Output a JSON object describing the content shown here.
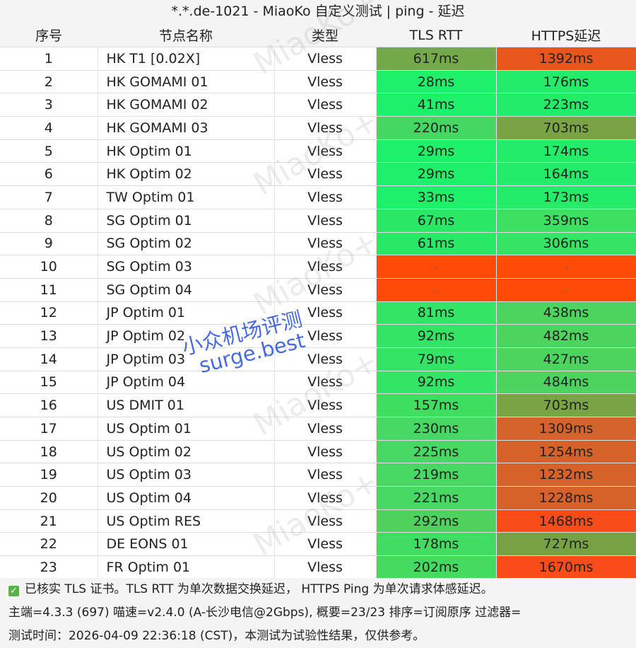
{
  "title": "*.*.de-1021 - MiaoKo 自定义测试 | ping - 延迟",
  "header": [
    "序号",
    "节点名称",
    "类型",
    "TLS RTT",
    "HTTPS延迟"
  ],
  "rows": [
    [
      "1",
      "HK T1 [0.02X]",
      "Vless",
      "617ms",
      "1392ms"
    ],
    [
      "2",
      "HK GOMAMI 01",
      "Vless",
      "28ms",
      "176ms"
    ],
    [
      "3",
      "HK GOMAMI 02",
      "Vless",
      "41ms",
      "223ms"
    ],
    [
      "4",
      "HK GOMAMI 03",
      "Vless",
      "220ms",
      "703ms"
    ],
    [
      "5",
      "HK Optim 01",
      "Vless",
      "29ms",
      "174ms"
    ],
    [
      "6",
      "HK Optim 02",
      "Vless",
      "29ms",
      "164ms"
    ],
    [
      "7",
      "TW Optim 01",
      "Vless",
      "33ms",
      "173ms"
    ],
    [
      "8",
      "SG Optim 01",
      "Vless",
      "67ms",
      "359ms"
    ],
    [
      "9",
      "SG Optim 02",
      "Vless",
      "61ms",
      "306ms"
    ],
    [
      "10",
      "SG Optim 03",
      "Vless",
      "-",
      "-"
    ],
    [
      "11",
      "SG Optim 04",
      "Vless",
      "-",
      "-"
    ],
    [
      "12",
      "JP Optim 01",
      "Vless",
      "81ms",
      "438ms"
    ],
    [
      "13",
      "JP Optim 02",
      "Vless",
      "92ms",
      "482ms"
    ],
    [
      "14",
      "JP Optim 03",
      "Vless",
      "79ms",
      "427ms"
    ],
    [
      "15",
      "JP Optim 04",
      "Vless",
      "92ms",
      "484ms"
    ],
    [
      "16",
      "US DMIT 01",
      "Vless",
      "157ms",
      "703ms"
    ],
    [
      "17",
      "US Optim 01",
      "Vless",
      "230ms",
      "1309ms"
    ],
    [
      "18",
      "US Optim 02",
      "Vless",
      "225ms",
      "1254ms"
    ],
    [
      "19",
      "US Optim 03",
      "Vless",
      "219ms",
      "1232ms"
    ],
    [
      "20",
      "US Optim 04",
      "Vless",
      "221ms",
      "1228ms"
    ],
    [
      "21",
      "US Optim RES",
      "Vless",
      "292ms",
      "1468ms"
    ],
    [
      "22",
      "DE EONS 01",
      "Vless",
      "178ms",
      "727ms"
    ],
    [
      "23",
      "FR Optim 01",
      "Vless",
      "202ms",
      "1670ms"
    ]
  ],
  "cell_colors": [
    [
      "#74a94a",
      "#e8561e"
    ],
    [
      "#1ef06a",
      "#22ec68"
    ],
    [
      "#1ef06a",
      "#22ec68"
    ],
    [
      "#44d862",
      "#78a444"
    ],
    [
      "#1ef06a",
      "#22ec68"
    ],
    [
      "#1ef06a",
      "#22ec68"
    ],
    [
      "#1ef06a",
      "#22ec68"
    ],
    [
      "#2ae866",
      "#3ee062"
    ],
    [
      "#2ae866",
      "#36e464"
    ],
    [
      "#ff4a08",
      "#ff4a08"
    ],
    [
      "#ff4a08",
      "#ff4a08"
    ],
    [
      "#34e464",
      "#4cd45e"
    ],
    [
      "#34e464",
      "#4cd45e"
    ],
    [
      "#34e464",
      "#4cd45e"
    ],
    [
      "#34e464",
      "#4cd45e"
    ],
    [
      "#3ede60",
      "#78a444"
    ],
    [
      "#46d862",
      "#d4642c"
    ],
    [
      "#46d862",
      "#d6622a"
    ],
    [
      "#46d862",
      "#d6622a"
    ],
    [
      "#46d862",
      "#d6622a"
    ],
    [
      "#50d05c",
      "#f84c1a"
    ],
    [
      "#40dc62",
      "#76a244"
    ],
    [
      "#44da60",
      "#fa4c1a"
    ]
  ],
  "footer": [
    "已核实 TLS 证书。TLS RTT 为单次数据交换延迟， HTTPS Ping 为单次请求体感延迟。",
    "主端=4.3.3 (697) 喵速=v2.4.0 (A-长沙电信@2Gbps), 概要=23/23 排序=订阅原序 过滤器=",
    "测试时间：2026-04-09 22:36:18 (CST)，本测试为试验性结果，仅供参考。"
  ],
  "watermark": "MiaoKo+",
  "overlay": [
    "小众机场评测",
    "surge.best"
  ]
}
